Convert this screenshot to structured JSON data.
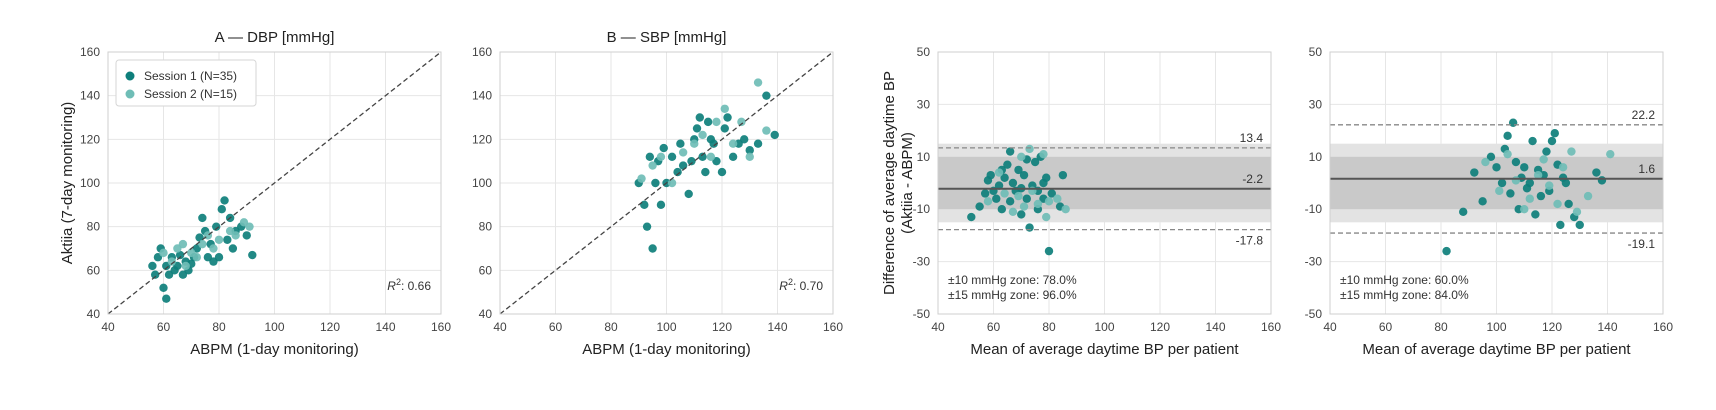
{
  "chart_data": [
    {
      "id": "A",
      "type": "scatter",
      "title": "A — DBP [mmHg]",
      "xlabel": "ABPM (1-day monitoring)",
      "ylabel": "Aktiia (7-day monitoring)",
      "xlim": [
        40,
        160
      ],
      "ylim": [
        40,
        160
      ],
      "xticks": [
        40,
        60,
        80,
        100,
        120,
        140,
        160
      ],
      "yticks": [
        40,
        60,
        80,
        100,
        120,
        140,
        160
      ],
      "grid": true,
      "identity_line": true,
      "legend": {
        "placement": "top-left",
        "entries": [
          {
            "label": "Session 1 (N=35)",
            "color": "#0e7f7b"
          },
          {
            "label": "Session 2 (N=15)",
            "color": "#6fbdb6"
          }
        ]
      },
      "r2_label": "R",
      "r2_sup": "2",
      "r2_value": ": 0.66",
      "series": [
        {
          "color": "#0e7f7b",
          "points": [
            [
              56,
              62
            ],
            [
              57,
              58
            ],
            [
              58,
              66
            ],
            [
              59,
              70
            ],
            [
              60,
              52
            ],
            [
              61,
              47
            ],
            [
              61,
              62
            ],
            [
              62,
              58
            ],
            [
              63,
              66
            ],
            [
              64,
              60
            ],
            [
              65,
              62
            ],
            [
              66,
              67
            ],
            [
              67,
              58
            ],
            [
              68,
              64
            ],
            [
              69,
              60
            ],
            [
              70,
              63
            ],
            [
              71,
              66
            ],
            [
              72,
              70
            ],
            [
              73,
              75
            ],
            [
              74,
              84
            ],
            [
              75,
              78
            ],
            [
              76,
              66
            ],
            [
              77,
              72
            ],
            [
              78,
              64
            ],
            [
              79,
              80
            ],
            [
              80,
              66
            ],
            [
              81,
              88
            ],
            [
              82,
              92
            ],
            [
              83,
              74
            ],
            [
              84,
              84
            ],
            [
              85,
              70
            ],
            [
              86,
              78
            ],
            [
              88,
              80
            ],
            [
              90,
              76
            ],
            [
              92,
              67
            ]
          ]
        },
        {
          "color": "#6fbdb6",
          "points": [
            [
              60,
              68
            ],
            [
              63,
              64
            ],
            [
              65,
              70
            ],
            [
              67,
              72
            ],
            [
              68,
              62
            ],
            [
              70,
              68
            ],
            [
              72,
              66
            ],
            [
              74,
              72
            ],
            [
              76,
              76
            ],
            [
              78,
              70
            ],
            [
              80,
              74
            ],
            [
              84,
              78
            ],
            [
              86,
              76
            ],
            [
              89,
              82
            ],
            [
              91,
              80
            ]
          ]
        }
      ]
    },
    {
      "id": "B",
      "type": "scatter",
      "title": "B — SBP [mmHg]",
      "xlabel": "ABPM (1-day monitoring)",
      "ylabel": "",
      "xlim": [
        40,
        160
      ],
      "ylim": [
        40,
        160
      ],
      "xticks": [
        40,
        60,
        80,
        100,
        120,
        140,
        160
      ],
      "yticks": [
        40,
        60,
        80,
        100,
        120,
        140,
        160
      ],
      "grid": true,
      "identity_line": true,
      "r2_label": "R",
      "r2_sup": "2",
      "r2_value": ": 0.70",
      "series": [
        {
          "color": "#0e7f7b",
          "points": [
            [
              90,
              100
            ],
            [
              92,
              90
            ],
            [
              93,
              80
            ],
            [
              94,
              112
            ],
            [
              95,
              70
            ],
            [
              96,
              100
            ],
            [
              97,
              110
            ],
            [
              98,
              90
            ],
            [
              99,
              116
            ],
            [
              100,
              100
            ],
            [
              102,
              112
            ],
            [
              104,
              105
            ],
            [
              105,
              118
            ],
            [
              106,
              108
            ],
            [
              108,
              95
            ],
            [
              109,
              110
            ],
            [
              110,
              120
            ],
            [
              111,
              125
            ],
            [
              112,
              130
            ],
            [
              113,
              112
            ],
            [
              114,
              105
            ],
            [
              115,
              128
            ],
            [
              116,
              120
            ],
            [
              117,
              118
            ],
            [
              118,
              110
            ],
            [
              120,
              105
            ],
            [
              121,
              125
            ],
            [
              122,
              130
            ],
            [
              124,
              112
            ],
            [
              126,
              118
            ],
            [
              128,
              120
            ],
            [
              130,
              115
            ],
            [
              133,
              118
            ],
            [
              136,
              140
            ],
            [
              139,
              122
            ]
          ]
        },
        {
          "color": "#6fbdb6",
          "points": [
            [
              91,
              102
            ],
            [
              95,
              108
            ],
            [
              98,
              112
            ],
            [
              102,
              100
            ],
            [
              106,
              114
            ],
            [
              110,
              118
            ],
            [
              113,
              122
            ],
            [
              116,
              112
            ],
            [
              118,
              128
            ],
            [
              121,
              134
            ],
            [
              124,
              118
            ],
            [
              127,
              128
            ],
            [
              130,
              112
            ],
            [
              133,
              146
            ],
            [
              136,
              124
            ]
          ]
        }
      ]
    },
    {
      "id": "C",
      "type": "scatter",
      "title": "",
      "xlabel": "Mean of average daytime BP per patient",
      "ylabel": "Difference of average daytime BP",
      "ylabel2": "(Aktiia - ABPM)",
      "xlim": [
        40,
        160
      ],
      "ylim": [
        -50,
        50
      ],
      "xticks": [
        40,
        60,
        80,
        100,
        120,
        140,
        160
      ],
      "yticks": [
        -50,
        -30,
        -10,
        10,
        30,
        50
      ],
      "grid": true,
      "mean_line": -2.2,
      "loa_upper": 13.4,
      "loa_lower": -17.8,
      "band_outer": 15,
      "band_inner": 10,
      "labels": {
        "upper": "13.4",
        "mean": "-2.2",
        "lower": "-17.8"
      },
      "zone_text": [
        "±10 mmHg zone: 78.0%",
        "±15 mmHg zone: 96.0%"
      ],
      "series": [
        {
          "color": "#0e7f7b",
          "points": [
            [
              52,
              -13
            ],
            [
              55,
              -9
            ],
            [
              57,
              -4
            ],
            [
              58,
              1
            ],
            [
              59,
              3
            ],
            [
              60,
              -3
            ],
            [
              61,
              -6
            ],
            [
              62,
              -1
            ],
            [
              63,
              5
            ],
            [
              63,
              -10
            ],
            [
              64,
              2
            ],
            [
              65,
              7
            ],
            [
              66,
              -7
            ],
            [
              66,
              12
            ],
            [
              67,
              0
            ],
            [
              68,
              -3
            ],
            [
              69,
              5
            ],
            [
              70,
              -2
            ],
            [
              70,
              -12
            ],
            [
              71,
              3
            ],
            [
              72,
              -6
            ],
            [
              72,
              9
            ],
            [
              73,
              -17
            ],
            [
              74,
              -1
            ],
            [
              75,
              8
            ],
            [
              76,
              -3
            ],
            [
              76,
              -10
            ],
            [
              77,
              10
            ],
            [
              78,
              0
            ],
            [
              78,
              -6
            ],
            [
              79,
              2
            ],
            [
              80,
              -26
            ],
            [
              81,
              -4
            ],
            [
              84,
              -9
            ],
            [
              85,
              3
            ]
          ]
        },
        {
          "color": "#6fbdb6",
          "points": [
            [
              58,
              -7
            ],
            [
              62,
              4
            ],
            [
              64,
              -4
            ],
            [
              67,
              -11
            ],
            [
              69,
              -5
            ],
            [
              70,
              10
            ],
            [
              71,
              -9
            ],
            [
              73,
              13
            ],
            [
              74,
              -3
            ],
            [
              76,
              -8
            ],
            [
              78,
              11
            ],
            [
              79,
              -13
            ],
            [
              80,
              -7
            ],
            [
              83,
              -6
            ],
            [
              86,
              -10
            ]
          ]
        }
      ]
    },
    {
      "id": "D",
      "type": "scatter",
      "title": "",
      "xlabel": "Mean of average daytime BP per patient",
      "ylabel": "",
      "xlim": [
        40,
        160
      ],
      "ylim": [
        -50,
        50
      ],
      "xticks": [
        40,
        60,
        80,
        100,
        120,
        140,
        160
      ],
      "yticks": [
        -50,
        -30,
        -10,
        10,
        30,
        50
      ],
      "grid": true,
      "mean_line": 1.6,
      "loa_upper": 22.2,
      "loa_lower": -19.1,
      "band_outer": 15,
      "band_inner": 10,
      "labels": {
        "upper": "22.2",
        "mean": "1.6",
        "lower": "-19.1"
      },
      "zone_text": [
        "±10 mmHg zone: 60.0%",
        "±15 mmHg zone: 84.0%"
      ],
      "series": [
        {
          "color": "#0e7f7b",
          "points": [
            [
              82,
              -26
            ],
            [
              88,
              -11
            ],
            [
              92,
              4
            ],
            [
              95,
              -7
            ],
            [
              98,
              10
            ],
            [
              100,
              6
            ],
            [
              102,
              0
            ],
            [
              103,
              13
            ],
            [
              104,
              18
            ],
            [
              105,
              -4
            ],
            [
              106,
              23
            ],
            [
              107,
              8
            ],
            [
              108,
              -10
            ],
            [
              109,
              2
            ],
            [
              110,
              6
            ],
            [
              111,
              -2
            ],
            [
              112,
              0
            ],
            [
              113,
              16
            ],
            [
              114,
              -12
            ],
            [
              115,
              5
            ],
            [
              116,
              -5
            ],
            [
              117,
              3
            ],
            [
              118,
              12
            ],
            [
              119,
              -3
            ],
            [
              120,
              16
            ],
            [
              121,
              19
            ],
            [
              122,
              7
            ],
            [
              123,
              -16
            ],
            [
              124,
              2
            ],
            [
              125,
              0
            ],
            [
              126,
              -8
            ],
            [
              128,
              -13
            ],
            [
              130,
              -16
            ],
            [
              136,
              4
            ],
            [
              138,
              1
            ]
          ]
        },
        {
          "color": "#6fbdb6",
          "points": [
            [
              96,
              8
            ],
            [
              101,
              -3
            ],
            [
              104,
              11
            ],
            [
              107,
              1
            ],
            [
              110,
              -10
            ],
            [
              112,
              -6
            ],
            [
              115,
              3
            ],
            [
              117,
              9
            ],
            [
              119,
              -1
            ],
            [
              122,
              -8
            ],
            [
              124,
              6
            ],
            [
              127,
              12
            ],
            [
              129,
              -11
            ],
            [
              133,
              -5
            ],
            [
              141,
              11
            ]
          ]
        }
      ]
    }
  ]
}
